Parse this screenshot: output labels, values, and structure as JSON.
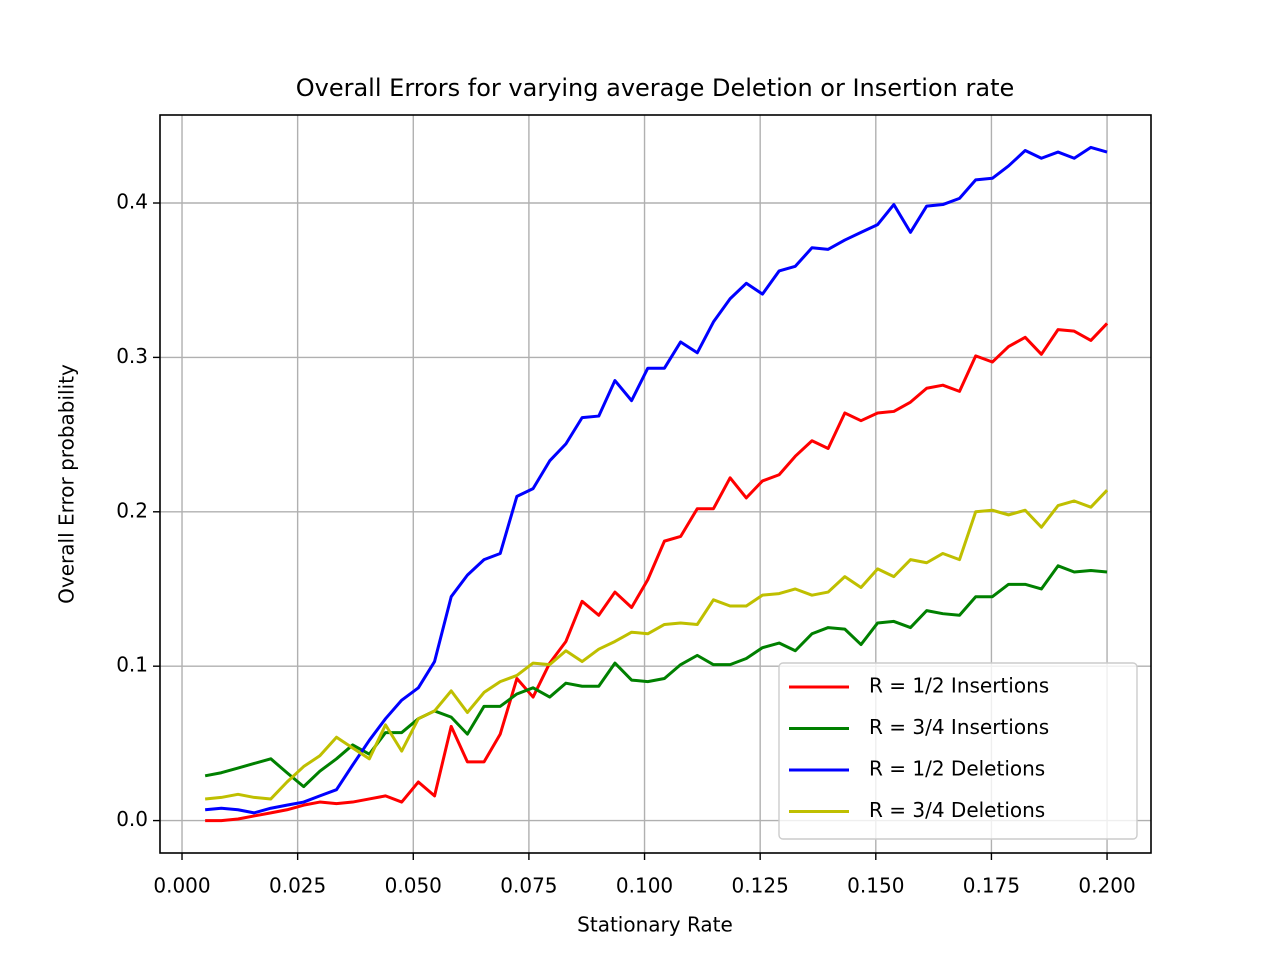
{
  "chart_data": {
    "type": "line",
    "title": "Overall Errors for varying average Deletion or Insertion rate",
    "xlabel": "Stationary Rate",
    "ylabel": "Overall Error probability",
    "x": [
      0.005,
      0.0085,
      0.0121,
      0.0156,
      0.0192,
      0.0227,
      0.0263,
      0.0298,
      0.0334,
      0.0369,
      0.0405,
      0.044,
      0.0475,
      0.0511,
      0.0546,
      0.0582,
      0.0617,
      0.0653,
      0.0688,
      0.0724,
      0.0759,
      0.0795,
      0.083,
      0.0865,
      0.0901,
      0.0936,
      0.0972,
      0.1007,
      0.1043,
      0.1078,
      0.1114,
      0.1149,
      0.1185,
      0.122,
      0.1255,
      0.1291,
      0.1326,
      0.1362,
      0.1397,
      0.1433,
      0.1468,
      0.1504,
      0.1539,
      0.1575,
      0.161,
      0.1645,
      0.1681,
      0.1716,
      0.1752,
      0.1787,
      0.1823,
      0.1858,
      0.1894,
      0.1929,
      0.1965,
      0.2
    ],
    "series": [
      {
        "name": "R = 1/2 Insertions",
        "color": "#ff0000",
        "values": [
          0,
          0,
          0.001,
          0.003,
          0.005,
          0.007,
          0.01,
          0.012,
          0.011,
          0.012,
          0.014,
          0.016,
          0.012,
          0.025,
          0.016,
          0.061,
          0.038,
          0.038,
          0.056,
          0.092,
          0.08,
          0.102,
          0.116,
          0.142,
          0.133,
          0.148,
          0.138,
          0.156,
          0.181,
          0.184,
          0.202,
          0.202,
          0.222,
          0.209,
          0.22,
          0.224,
          0.236,
          0.246,
          0.241,
          0.264,
          0.259,
          0.264,
          0.265,
          0.271,
          0.28,
          0.282,
          0.278,
          0.301,
          0.297,
          0.307,
          0.313,
          0.302,
          0.318,
          0.317,
          0.311,
          0.322
        ]
      },
      {
        "name": "R = 3/4 Insertions",
        "color": "#008000",
        "values": [
          0.029,
          0.031,
          0.034,
          0.037,
          0.04,
          0.031,
          0.022,
          0.032,
          0.04,
          0.049,
          0.043,
          0.057,
          0.057,
          0.066,
          0.071,
          0.067,
          0.056,
          0.074,
          0.074,
          0.082,
          0.086,
          0.08,
          0.089,
          0.087,
          0.087,
          0.102,
          0.091,
          0.09,
          0.092,
          0.101,
          0.107,
          0.101,
          0.101,
          0.105,
          0.112,
          0.115,
          0.11,
          0.121,
          0.125,
          0.124,
          0.114,
          0.128,
          0.129,
          0.125,
          0.136,
          0.134,
          0.133,
          0.145,
          0.145,
          0.153,
          0.153,
          0.15,
          0.165,
          0.161,
          0.162,
          0.161
        ]
      },
      {
        "name": "R = 1/2 Deletions",
        "color": "#0000ff",
        "values": [
          0.007,
          0.008,
          0.007,
          0.005,
          0.008,
          0.01,
          0.012,
          0.016,
          0.02,
          0.036,
          0.052,
          0.066,
          0.078,
          0.086,
          0.103,
          0.145,
          0.159,
          0.169,
          0.173,
          0.21,
          0.215,
          0.233,
          0.244,
          0.261,
          0.262,
          0.285,
          0.272,
          0.293,
          0.293,
          0.31,
          0.303,
          0.323,
          0.338,
          0.348,
          0.341,
          0.356,
          0.359,
          0.371,
          0.37,
          0.376,
          0.381,
          0.386,
          0.399,
          0.381,
          0.398,
          0.399,
          0.403,
          0.415,
          0.416,
          0.424,
          0.434,
          0.429,
          0.433,
          0.429,
          0.436,
          0.433
        ]
      },
      {
        "name": "R = 3/4 Deletions",
        "color": "#bfbf00",
        "values": [
          0.014,
          0.015,
          0.017,
          0.015,
          0.014,
          0.025,
          0.035,
          0.042,
          0.054,
          0.047,
          0.04,
          0.062,
          0.045,
          0.066,
          0.071,
          0.084,
          0.07,
          0.083,
          0.09,
          0.094,
          0.102,
          0.101,
          0.11,
          0.103,
          0.111,
          0.116,
          0.122,
          0.121,
          0.127,
          0.128,
          0.127,
          0.143,
          0.139,
          0.139,
          0.146,
          0.147,
          0.15,
          0.146,
          0.148,
          0.158,
          0.151,
          0.163,
          0.158,
          0.169,
          0.167,
          0.173,
          0.169,
          0.2,
          0.201,
          0.198,
          0.201,
          0.19,
          0.204,
          0.207,
          0.203,
          0.214
        ]
      }
    ],
    "xlim": [
      -0.00476,
      0.2095
    ],
    "ylim": [
      -0.021,
      0.457
    ],
    "xticks": [
      {
        "value": 0,
        "label": "0.000"
      },
      0.025,
      {
        "value": 0.05,
        "label": "0.050"
      },
      0.075,
      {
        "value": 0.1,
        "label": "0.100"
      },
      0.125,
      {
        "value": 0.15,
        "label": "0.150"
      },
      0.175,
      {
        "value": 0.2,
        "label": "0.200"
      }
    ],
    "yticks": [
      {
        "value": 0,
        "label": "0.0"
      },
      0.1,
      0.2,
      0.3,
      0.4
    ],
    "grid": true,
    "legend": "lower right"
  }
}
